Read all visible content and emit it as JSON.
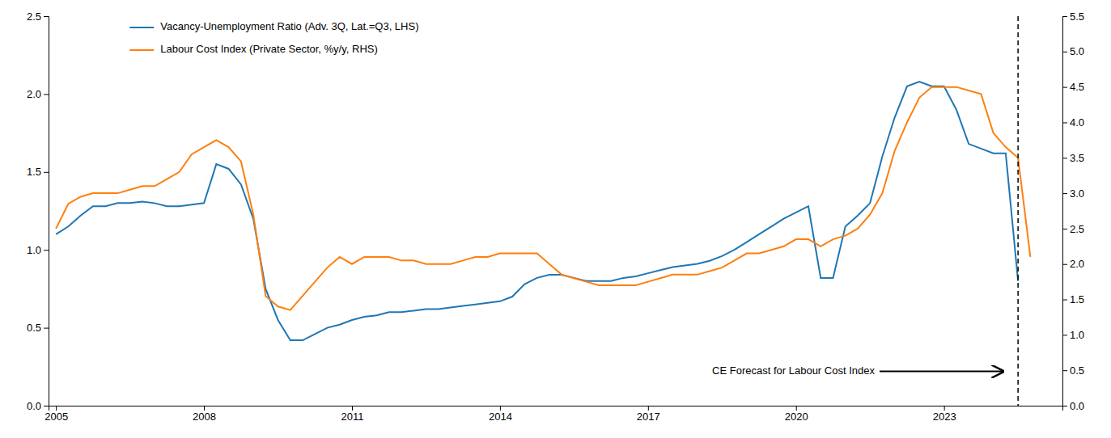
{
  "chart_data": {
    "type": "line",
    "xlim": [
      2004.85,
      2025.4
    ],
    "xticks": [
      2005,
      2008,
      2011,
      2014,
      2017,
      2020,
      2023
    ],
    "ylim": [
      0.0,
      2.5
    ],
    "yticks": [
      {
        "value": 0.0,
        "label": "0.0"
      },
      0.5,
      {
        "value": 1.0,
        "label": "1.0"
      },
      1.5,
      {
        "value": 2.0,
        "label": "2.0"
      },
      2.5
    ],
    "y2lim": [
      0.0,
      5.5
    ],
    "y2ticks": [
      {
        "value": 0.0,
        "label": "0.0"
      },
      0.5,
      {
        "value": 1.0,
        "label": "1.0"
      },
      1.5,
      {
        "value": 2.0,
        "label": "2.0"
      },
      2.5,
      {
        "value": 3.0,
        "label": "3.0"
      },
      3.5,
      {
        "value": 4.0,
        "label": "4.0"
      },
      4.5,
      {
        "value": 5.0,
        "label": "5.0"
      },
      5.5
    ],
    "grid": false,
    "legend": "upper left",
    "series": [
      {
        "name": "Vacancy-Unemployment Ratio (Adv. 3Q, Lat.=Q3, LHS)",
        "x": [
          2005.0,
          2005.25,
          2005.5,
          2005.75,
          2006.0,
          2006.25,
          2006.5,
          2006.75,
          2007.0,
          2007.25,
          2007.5,
          2007.75,
          2008.0,
          2008.25,
          2008.5,
          2008.75,
          2009.0,
          2009.25,
          2009.5,
          2009.75,
          2010.0,
          2010.25,
          2010.5,
          2010.75,
          2011.0,
          2011.25,
          2011.5,
          2011.75,
          2012.0,
          2012.25,
          2012.5,
          2012.75,
          2013.0,
          2013.25,
          2013.5,
          2013.75,
          2014.0,
          2014.25,
          2014.5,
          2014.75,
          2015.0,
          2015.25,
          2015.5,
          2015.75,
          2016.0,
          2016.25,
          2016.5,
          2016.75,
          2017.0,
          2017.25,
          2017.5,
          2017.75,
          2018.0,
          2018.25,
          2018.5,
          2018.75,
          2019.0,
          2019.25,
          2019.5,
          2019.75,
          2020.0,
          2020.25,
          2020.5,
          2020.75,
          2021.0,
          2021.25,
          2021.5,
          2021.75,
          2022.0,
          2022.25,
          2022.5,
          2022.75,
          2023.0,
          2023.25,
          2023.5,
          2023.75,
          2024.0,
          2024.25,
          2024.5
        ],
        "values": [
          1.1,
          1.15,
          1.22,
          1.28,
          1.28,
          1.3,
          1.3,
          1.31,
          1.3,
          1.28,
          1.28,
          1.29,
          1.3,
          1.55,
          1.52,
          1.42,
          1.2,
          0.75,
          0.55,
          0.42,
          0.42,
          0.46,
          0.5,
          0.52,
          0.55,
          0.57,
          0.58,
          0.6,
          0.6,
          0.61,
          0.62,
          0.62,
          0.63,
          0.64,
          0.65,
          0.66,
          0.67,
          0.7,
          0.78,
          0.82,
          0.84,
          0.84,
          0.82,
          0.8,
          0.8,
          0.8,
          0.82,
          0.83,
          0.85,
          0.87,
          0.89,
          0.9,
          0.91,
          0.93,
          0.96,
          1.0,
          1.05,
          1.1,
          1.15,
          1.2,
          1.24,
          1.28,
          0.82,
          0.82,
          1.15,
          1.22,
          1.3,
          1.6,
          1.85,
          2.05,
          2.08,
          2.05,
          2.05,
          1.9,
          1.68,
          1.65,
          1.62,
          1.62,
          0.8
        ]
      },
      {
        "name": "Labour Cost Index (Private Sector, %y/y, RHS)",
        "axis": "y2",
        "x": [
          2005.0,
          2005.25,
          2005.5,
          2005.75,
          2006.0,
          2006.25,
          2006.5,
          2006.75,
          2007.0,
          2007.25,
          2007.5,
          2007.75,
          2008.0,
          2008.25,
          2008.5,
          2008.75,
          2009.0,
          2009.25,
          2009.5,
          2009.75,
          2010.0,
          2010.25,
          2010.5,
          2010.75,
          2011.0,
          2011.25,
          2011.5,
          2011.75,
          2012.0,
          2012.25,
          2012.5,
          2012.75,
          2013.0,
          2013.25,
          2013.5,
          2013.75,
          2014.0,
          2014.25,
          2014.5,
          2014.75,
          2015.0,
          2015.25,
          2015.5,
          2015.75,
          2016.0,
          2016.25,
          2016.5,
          2016.75,
          2017.0,
          2017.25,
          2017.5,
          2017.75,
          2018.0,
          2018.25,
          2018.5,
          2018.75,
          2019.0,
          2019.25,
          2019.5,
          2019.75,
          2020.0,
          2020.25,
          2020.5,
          2020.75,
          2021.0,
          2021.25,
          2021.5,
          2021.75,
          2022.0,
          2022.25,
          2022.5,
          2022.75,
          2023.0,
          2023.25,
          2023.5,
          2023.75,
          2024.0,
          2024.25,
          2024.5,
          2024.75
        ],
        "values": [
          2.5,
          2.85,
          2.95,
          3.0,
          3.0,
          3.0,
          3.05,
          3.1,
          3.1,
          3.2,
          3.3,
          3.55,
          3.65,
          3.75,
          3.65,
          3.45,
          2.7,
          1.55,
          1.4,
          1.35,
          1.55,
          1.75,
          1.95,
          2.1,
          2.0,
          2.1,
          2.1,
          2.1,
          2.05,
          2.05,
          2.0,
          2.0,
          2.0,
          2.05,
          2.1,
          2.1,
          2.15,
          2.15,
          2.15,
          2.15,
          2.0,
          1.85,
          1.8,
          1.75,
          1.7,
          1.7,
          1.7,
          1.7,
          1.75,
          1.8,
          1.85,
          1.85,
          1.85,
          1.9,
          1.95,
          2.05,
          2.15,
          2.15,
          2.2,
          2.25,
          2.35,
          2.35,
          2.25,
          2.35,
          2.4,
          2.5,
          2.7,
          3.0,
          3.6,
          4.0,
          4.35,
          4.5,
          4.5,
          4.5,
          4.45,
          4.4,
          3.85,
          3.65,
          3.5,
          2.1
        ]
      }
    ],
    "vertical_lines": [
      {
        "x": 2024.5,
        "line_style": "dashed"
      }
    ],
    "annotations": [
      {
        "text": "CE Forecast for Labour Cost Index",
        "x": 2018.3,
        "y": 0.22,
        "arrow_to_x": 2024.2
      }
    ]
  }
}
